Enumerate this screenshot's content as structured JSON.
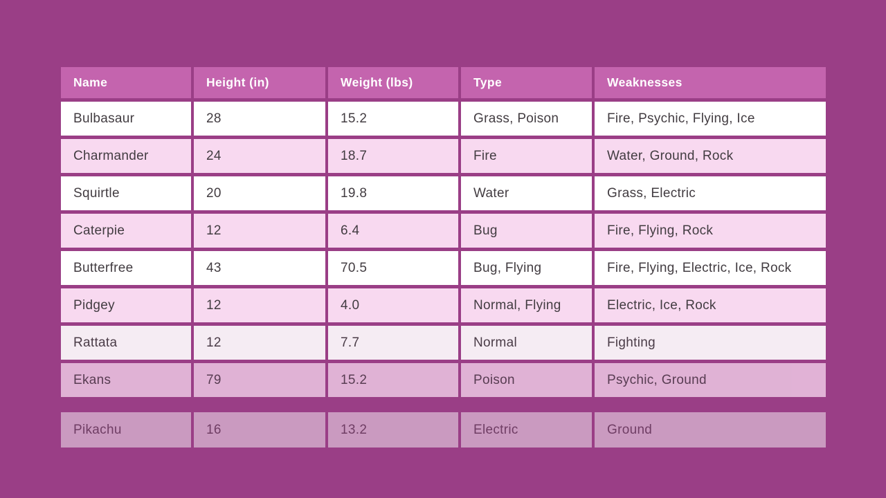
{
  "page": {
    "background_color": "#9a3e86"
  },
  "style": {
    "header_background": "#c464ae",
    "header_text_color": "#ffffff",
    "row_color_odd": "#ffffff",
    "row_color_even": "#f8d9f0",
    "cell_text_color": "#423c41"
  },
  "chart_data": {
    "type": "table",
    "title": "",
    "columns": [
      "Name",
      "Height (in)",
      "Weight (lbs)",
      "Type",
      "Weaknesses"
    ],
    "rows": [
      {
        "name": "Bulbasaur",
        "height_in": "28",
        "weight_lbs": "15.2",
        "type": "Grass, Poison",
        "weaknesses": "Fire, Psychic, Flying, Ice",
        "opacity": 1,
        "detached": false
      },
      {
        "name": "Charmander",
        "height_in": "24",
        "weight_lbs": "18.7",
        "type": "Fire",
        "weaknesses": "Water, Ground, Rock",
        "opacity": 1,
        "detached": false
      },
      {
        "name": "Squirtle",
        "height_in": "20",
        "weight_lbs": "19.8",
        "type": "Water",
        "weaknesses": "Grass, Electric",
        "opacity": 1,
        "detached": false
      },
      {
        "name": "Caterpie",
        "height_in": "12",
        "weight_lbs": "6.4",
        "type": "Bug",
        "weaknesses": "Fire, Flying, Rock",
        "opacity": 1,
        "detached": false
      },
      {
        "name": "Butterfree",
        "height_in": "43",
        "weight_lbs": "70.5",
        "type": "Bug, Flying",
        "weaknesses": "Fire, Flying, Electric, Ice, Rock",
        "opacity": 1,
        "detached": false
      },
      {
        "name": "Pidgey",
        "height_in": "12",
        "weight_lbs": "4.0",
        "type": "Normal, Flying",
        "weaknesses": "Electric, Ice, Rock",
        "opacity": 1,
        "detached": false
      },
      {
        "name": "Rattata",
        "height_in": "12",
        "weight_lbs": "7.7",
        "type": "Normal",
        "weaknesses": "Fighting",
        "opacity": 0.9,
        "detached": false
      },
      {
        "name": "Ekans",
        "height_in": "79",
        "weight_lbs": "15.2",
        "type": "Poison",
        "weaknesses": "Psychic, Ground",
        "opacity": 0.75,
        "detached": false
      },
      {
        "name": "Pikachu",
        "height_in": "16",
        "weight_lbs": "13.2",
        "type": "Electric",
        "weaknesses": "Ground",
        "opacity": 0.48,
        "detached": true
      }
    ]
  }
}
